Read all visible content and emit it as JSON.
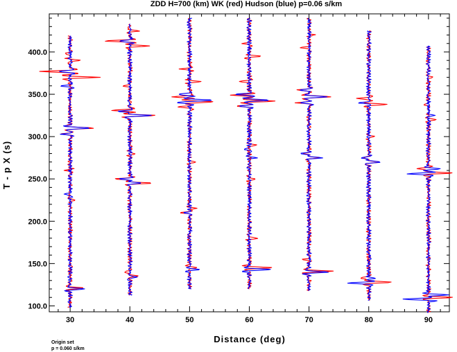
{
  "chart_data": {
    "type": "line",
    "title": "ZDD H=700 (km) WK (red) Hudson (blue) p=0.06 s/km",
    "xlabel": "Distance (deg)",
    "ylabel": "T - p X (s)",
    "xlim": [
      26.5,
      93.5
    ],
    "ylim": [
      93,
      445
    ],
    "x_ticks": [
      "30",
      "40",
      "50",
      "60",
      "70",
      "80",
      "90"
    ],
    "y_ticks": [
      "100.0",
      "150.0",
      "200.0",
      "250.0",
      "300.0",
      "350.0",
      "400.0"
    ],
    "grid": false,
    "colors": {
      "WK": "#ff0000",
      "Hudson": "#0000ff"
    },
    "series": [
      {
        "name": "WK",
        "traces": [
          {
            "distance": 30,
            "trace_top": 419,
            "trace_bottom": 98,
            "pulses": [
              [
                121,
                2.5
              ],
              [
                303,
                -1.5
              ],
              [
                310,
                4
              ],
              [
                370,
                5
              ],
              [
                377,
                -5
              ],
              [
                390,
                2
              ],
              [
                398,
                -1
              ],
              [
                225,
                1
              ],
              [
                260,
                -1
              ]
            ]
          },
          {
            "distance": 40,
            "trace_top": 433,
            "trace_bottom": 112,
            "pulses": [
              [
                135,
                1.5
              ],
              [
                140,
                -1
              ],
              [
                245,
                3.5
              ],
              [
                250,
                -2.5
              ],
              [
                325,
                4
              ],
              [
                331,
                -3
              ],
              [
                407,
                3
              ],
              [
                413,
                -4
              ],
              [
                425,
                1.5
              ],
              [
                280,
                1
              ],
              [
                360,
                -1
              ]
            ]
          },
          {
            "distance": 50,
            "trace_top": 440,
            "trace_bottom": 120,
            "pulses": [
              [
                145,
                1.5
              ],
              [
                210,
                -1.5
              ],
              [
                215,
                1
              ],
              [
                335,
                -2
              ],
              [
                341,
                4
              ],
              [
                347,
                -3
              ],
              [
                365,
                2
              ],
              [
                380,
                -1.5
              ],
              [
                270,
                1
              ]
            ]
          },
          {
            "distance": 60,
            "trace_top": 440,
            "trace_bottom": 120,
            "pulses": [
              [
                145,
                4
              ],
              [
                180,
                1.5
              ],
              [
                290,
                1.5
              ],
              [
                336,
                -2
              ],
              [
                342,
                4
              ],
              [
                349,
                -3
              ],
              [
                365,
                -1.5
              ],
              [
                395,
                2
              ],
              [
                410,
                -1
              ],
              [
                250,
                1
              ]
            ]
          },
          {
            "distance": 70,
            "trace_top": 440,
            "trace_bottom": 118,
            "pulses": [
              [
                141,
                4
              ],
              [
                155,
                -1
              ],
              [
                275,
                1.5
              ],
              [
                280,
                -1
              ],
              [
                340,
                -2
              ],
              [
                347,
                4
              ],
              [
                355,
                -2
              ],
              [
                405,
                -1.5
              ],
              [
                420,
                1
              ]
            ]
          },
          {
            "distance": 80,
            "trace_top": 425,
            "trace_bottom": 106,
            "pulses": [
              [
                128,
                4
              ],
              [
                133,
                -1.5
              ],
              [
                270,
                2
              ],
              [
                275,
                -1
              ],
              [
                338,
                3
              ],
              [
                345,
                -2
              ],
              [
                300,
                1
              ]
            ]
          },
          {
            "distance": 90,
            "trace_top": 407,
            "trace_bottom": 92,
            "pulses": [
              [
                110,
                4
              ],
              [
                257,
                4
              ],
              [
                262,
                -2
              ],
              [
                320,
                1.5
              ],
              [
                338,
                -1
              ],
              [
                370,
                1
              ]
            ]
          }
        ]
      },
      {
        "name": "Hudson",
        "traces": [
          {
            "distance": 30,
            "trace_top": 419,
            "trace_bottom": 98,
            "pulses": [
              [
                120,
                2.5
              ],
              [
                310,
                3.5
              ],
              [
                303,
                -1.5
              ],
              [
                232,
                -1
              ],
              [
                377,
                -2
              ],
              [
                360,
                -1.5
              ]
            ]
          },
          {
            "distance": 40,
            "trace_top": 433,
            "trace_bottom": 112,
            "pulses": [
              [
                134,
                1.5
              ],
              [
                245,
                2
              ],
              [
                250,
                -1.5
              ],
              [
                325,
                3.5
              ],
              [
                330,
                -2
              ],
              [
                413,
                -2
              ]
            ]
          },
          {
            "distance": 50,
            "trace_top": 440,
            "trace_bottom": 120,
            "pulses": [
              [
                143,
                1.5
              ],
              [
                210,
                -1
              ],
              [
                340,
                -1.5
              ],
              [
                343,
                4
              ],
              [
                350,
                -2
              ]
            ]
          },
          {
            "distance": 60,
            "trace_top": 440,
            "trace_bottom": 120,
            "pulses": [
              [
                143,
                3.5
              ],
              [
                336,
                -1.5
              ],
              [
                343,
                3.5
              ],
              [
                350,
                -2.5
              ],
              [
                275,
                1
              ],
              [
                285,
                -1
              ]
            ]
          },
          {
            "distance": 70,
            "trace_top": 440,
            "trace_bottom": 118,
            "pulses": [
              [
                140,
                3.5
              ],
              [
                275,
                2
              ],
              [
                280,
                -1.5
              ],
              [
                340,
                -1.5
              ],
              [
                347,
                3
              ],
              [
                355,
                -1.5
              ]
            ]
          },
          {
            "distance": 80,
            "trace_top": 425,
            "trace_bottom": 106,
            "pulses": [
              [
                127,
                -3.5
              ],
              [
                133,
                1
              ],
              [
                270,
                2
              ],
              [
                275,
                -1.5
              ],
              [
                340,
                -1.5
              ]
            ]
          },
          {
            "distance": 90,
            "trace_top": 407,
            "trace_bottom": 92,
            "pulses": [
              [
                108,
                -4
              ],
              [
                113,
                3
              ],
              [
                256,
                -3.5
              ],
              [
                262,
                2
              ],
              [
                325,
                1
              ]
            ]
          }
        ]
      }
    ]
  },
  "footer": {
    "line1": "Origin set",
    "line2": "p = 0.060 s/km"
  }
}
